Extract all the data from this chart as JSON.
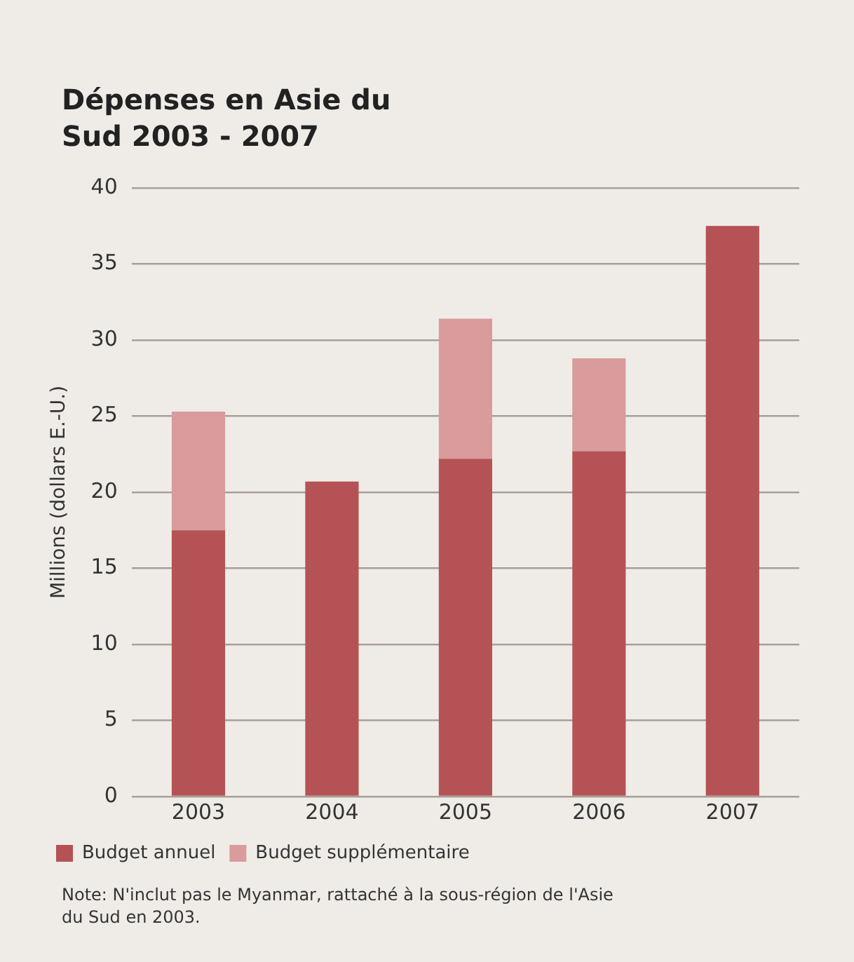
{
  "chart_data": {
    "type": "bar",
    "title": "Dépenses en Asie du Sud 2003 - 2007",
    "ylabel": "Millions (dollars E.-U.)",
    "categories": [
      "2003",
      "2004",
      "2005",
      "2006",
      "2007"
    ],
    "series": [
      {
        "name": "Budget annuel",
        "color": "#b55255",
        "values": [
          17.5,
          20.7,
          22.2,
          22.7,
          37.5
        ]
      },
      {
        "name": "Budget supplémentaire",
        "color": "#d99b9b",
        "values": [
          7.8,
          null,
          9.2,
          6.1,
          null
        ]
      }
    ],
    "stacked": true,
    "ylim": [
      0,
      40
    ],
    "yticks": [
      0,
      5,
      10,
      15,
      20,
      25,
      30,
      35,
      40
    ],
    "grid": "y",
    "legend": "bottom left",
    "annotations": [
      "Note: N'inclut pas le Myanmar, rattaché à la sous-région de l'Asie du Sud en 2003."
    ]
  }
}
